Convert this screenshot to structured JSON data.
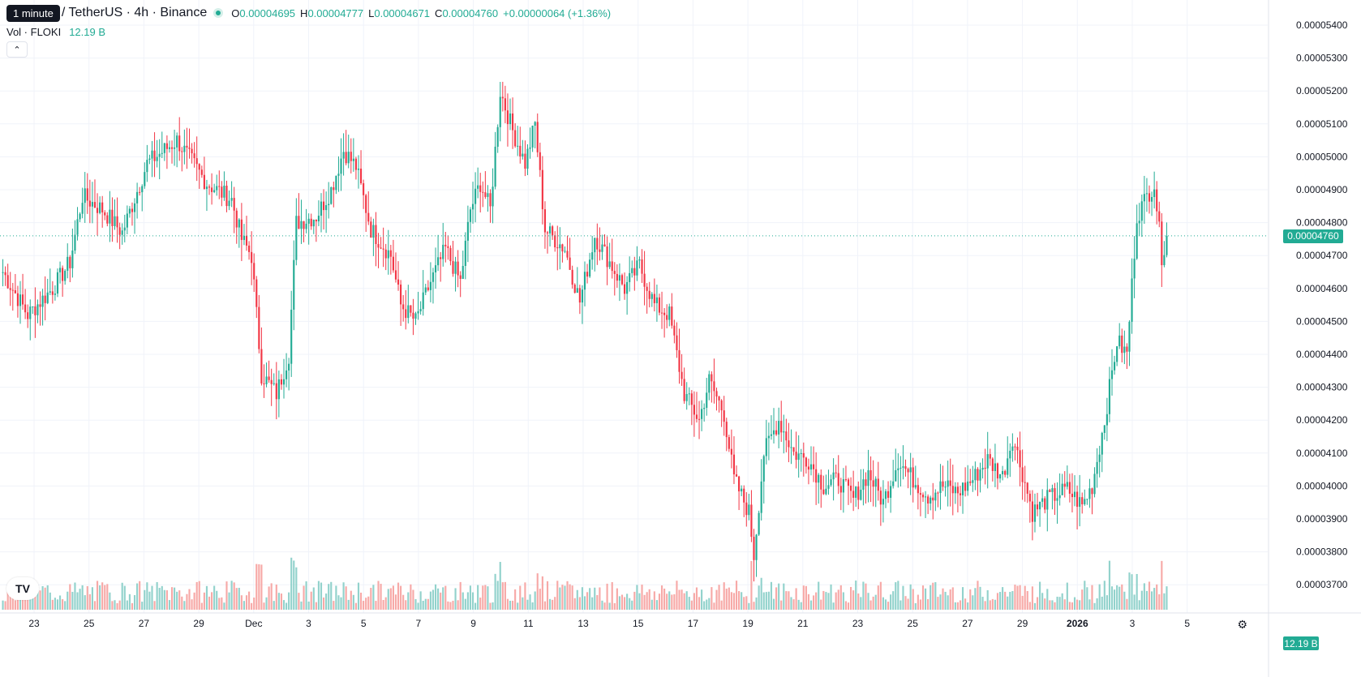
{
  "header": {
    "tooltip": "1 minute",
    "symbol": "/ TetherUS · 4h · Binance",
    "ohlc": {
      "o_label": "O",
      "o": "0.00004695",
      "h_label": "H",
      "h": "0.00004777",
      "l_label": "L",
      "l": "0.00004671",
      "c_label": "C",
      "c": "0.00004760",
      "change": "+0.00000064 (+1.36%)"
    }
  },
  "volume": {
    "label": "Vol · FLOKI",
    "value": "12.19 B",
    "tag": "12.19 B"
  },
  "collapse_icon": "chevron-up-icon",
  "logo_icon": "tradingview-logo",
  "current_price_tag": "0.00004760",
  "colors": {
    "up": "#22ab94",
    "down": "#f23645",
    "up_vol": "#92d2cc",
    "down_vol": "#f7a9a7",
    "grid": "#f0f3fa"
  },
  "chart_data": {
    "type": "candlestick",
    "interval": "4h",
    "y_axis_ticks": [
      "0.00005400",
      "0.00005300",
      "0.00005200",
      "0.00005100",
      "0.00005000",
      "0.00004900",
      "0.00004800",
      "0.00004700",
      "0.00004600",
      "0.00004500",
      "0.00004400",
      "0.00004300",
      "0.00004200",
      "0.00004100",
      "0.00004000",
      "0.00003900",
      "0.00003800",
      "0.00003700"
    ],
    "ylim": [
      3.66e-05,
      5.44e-05
    ],
    "x_axis_ticks": [
      "23",
      "25",
      "27",
      "29",
      "Dec",
      "3",
      "5",
      "7",
      "9",
      "11",
      "13",
      "15",
      "17",
      "19",
      "21",
      "23",
      "25",
      "27",
      "29",
      "2026",
      "3",
      "5"
    ],
    "bold_ticks": [
      "2026"
    ],
    "current_price": 4.76e-05,
    "close_path": [
      [
        0,
        4.65e-05
      ],
      [
        10,
        4.52e-05
      ],
      [
        20,
        4.6e-05
      ],
      [
        27,
        4.68e-05
      ],
      [
        32,
        4.88e-05
      ],
      [
        40,
        4.84e-05
      ],
      [
        48,
        4.77e-05
      ],
      [
        58,
        4.98e-05
      ],
      [
        70,
        5.05e-05
      ],
      [
        82,
        4.92e-05
      ],
      [
        92,
        4.87e-05
      ],
      [
        96,
        4.75e-05
      ],
      [
        100,
        4.7e-05
      ],
      [
        104,
        4.34e-05
      ],
      [
        110,
        4.28e-05
      ],
      [
        115,
        4.4e-05
      ],
      [
        118,
        4.8e-05
      ],
      [
        126,
        4.82e-05
      ],
      [
        132,
        4.9e-05
      ],
      [
        137,
        5.02e-05
      ],
      [
        142,
        4.97e-05
      ],
      [
        148,
        4.78e-05
      ],
      [
        156,
        4.7e-05
      ],
      [
        160,
        4.55e-05
      ],
      [
        166,
        4.5e-05
      ],
      [
        172,
        4.62e-05
      ],
      [
        178,
        4.72e-05
      ],
      [
        184,
        4.62e-05
      ],
      [
        188,
        4.84e-05
      ],
      [
        192,
        4.92e-05
      ],
      [
        196,
        4.84e-05
      ],
      [
        200,
        5.2e-05
      ],
      [
        205,
        5.08e-05
      ],
      [
        210,
        4.98e-05
      ],
      [
        214,
        5.1e-05
      ],
      [
        218,
        4.78e-05
      ],
      [
        226,
        4.72e-05
      ],
      [
        232,
        4.56e-05
      ],
      [
        238,
        4.76e-05
      ],
      [
        244,
        4.68e-05
      ],
      [
        250,
        4.6e-05
      ],
      [
        256,
        4.67e-05
      ],
      [
        262,
        4.55e-05
      ],
      [
        268,
        4.52e-05
      ],
      [
        274,
        4.28e-05
      ],
      [
        280,
        4.2e-05
      ],
      [
        284,
        4.32e-05
      ],
      [
        290,
        4.22e-05
      ],
      [
        294,
        4.02e-05
      ],
      [
        300,
        3.92e-05
      ],
      [
        302,
        3.79e-05
      ],
      [
        306,
        4.1e-05
      ],
      [
        312,
        4.2e-05
      ],
      [
        318,
        4.1e-05
      ],
      [
        324,
        4.08e-05
      ],
      [
        330,
        4e-05
      ],
      [
        336,
        4.02e-05
      ],
      [
        342,
        3.96e-05
      ],
      [
        348,
        4.04e-05
      ],
      [
        354,
        3.95e-05
      ],
      [
        360,
        4.08e-05
      ],
      [
        366,
        4.02e-05
      ],
      [
        372,
        3.97e-05
      ],
      [
        378,
        4e-05
      ],
      [
        384,
        3.98e-05
      ],
      [
        390,
        4.02e-05
      ],
      [
        396,
        4.08e-05
      ],
      [
        402,
        4.03e-05
      ],
      [
        406,
        4.15e-05
      ],
      [
        410,
        4.04e-05
      ],
      [
        414,
        3.92e-05
      ],
      [
        420,
        3.96e-05
      ],
      [
        428,
        3.99e-05
      ],
      [
        434,
        3.94e-05
      ],
      [
        438,
        4e-05
      ],
      [
        443,
        4.2e-05
      ],
      [
        448,
        4.44e-05
      ],
      [
        452,
        4.4e-05
      ],
      [
        456,
        4.82e-05
      ],
      [
        460,
        4.88e-05
      ],
      [
        463,
        4.92e-05
      ],
      [
        466,
        4.7e-05
      ],
      [
        468,
        4.76e-05
      ]
    ]
  }
}
